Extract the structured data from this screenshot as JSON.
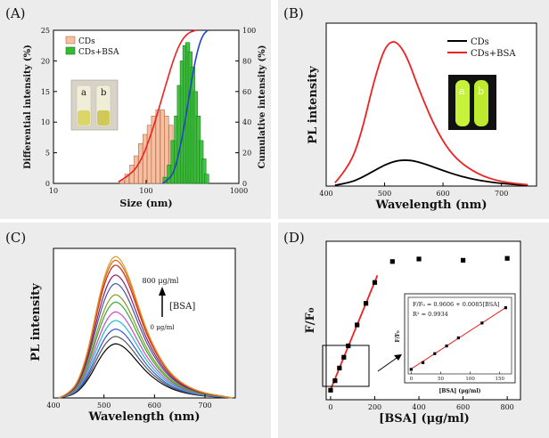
{
  "panels": [
    {
      "label": "(A)"
    },
    {
      "label": "(B)"
    },
    {
      "label": "(C)"
    },
    {
      "label": "(D)"
    }
  ],
  "chart_data": [
    {
      "panel": "(A)",
      "type": "bar",
      "xlabel": "Size (nm)",
      "ylabel": "Differential intensity (%)",
      "y2label": "Cumulative intensity (%)",
      "xscale": "log",
      "xlim": [
        10,
        1000
      ],
      "ylim": [
        0,
        25
      ],
      "y2lim": [
        0,
        100
      ],
      "xticks": [
        "10",
        "100",
        "1000"
      ],
      "yticks": [
        "0",
        "5",
        "10",
        "15",
        "20",
        "25"
      ],
      "y2ticks": [
        "0",
        "20",
        "40",
        "60",
        "80",
        "100"
      ],
      "legend_position": "top-left",
      "inset_letters": [
        "a",
        "b"
      ],
      "colors": {
        "cds": "#f5c0a0",
        "cds_edge": "#b86a4a",
        "cds_bsa": "#33bb33",
        "cds_bsa_edge": "#1f7a1f",
        "cum_cds": "#ee2222",
        "cum_cds_bsa": "#2244cc"
      },
      "series": [
        {
          "name": "CDs",
          "x": [
            55,
            62,
            70,
            78,
            87,
            97,
            108,
            120,
            134,
            150,
            166,
            185,
            205,
            228,
            255,
            285
          ],
          "values": [
            0.5,
            1.5,
            3,
            4.5,
            6.5,
            8,
            9.5,
            11,
            12,
            12,
            11,
            9.5,
            7,
            5,
            3,
            1.2
          ]
        },
        {
          "name": "CDs+BSA",
          "x": [
            160,
            178,
            195,
            212,
            228,
            245,
            262,
            280,
            298,
            318,
            340,
            365,
            392,
            420,
            450
          ],
          "values": [
            1,
            3,
            7,
            11,
            16,
            20,
            22.5,
            23,
            21.5,
            19,
            15,
            11,
            7,
            4,
            1.5
          ]
        },
        {
          "name": "CDs cumulative",
          "x": [
            50,
            70,
            90,
            110,
            130,
            150,
            170,
            200,
            230,
            260,
            300,
            350
          ],
          "values": [
            1,
            6,
            16,
            30,
            44,
            57,
            68,
            82,
            91,
            96,
            99,
            100
          ]
        },
        {
          "name": "CDs+BSA cumulative",
          "x": [
            150,
            180,
            200,
            220,
            245,
            270,
            300,
            330,
            370,
            410,
            460
          ],
          "values": [
            0,
            3,
            8,
            17,
            30,
            45,
            62,
            77,
            90,
            97,
            100
          ]
        }
      ]
    },
    {
      "panel": "(B)",
      "type": "line",
      "xlabel": "Wavelength (nm)",
      "ylabel": "PL intensity",
      "xlim": [
        400,
        760
      ],
      "ylim": [
        0,
        1.0
      ],
      "xticks": [
        "400",
        "500",
        "600",
        "700"
      ],
      "legend_position": "top-right",
      "inset_letters": [
        "a",
        "b"
      ],
      "colors": {
        "cds": "#000000",
        "cds_bsa": "#ee2222"
      },
      "series": [
        {
          "name": "CDs",
          "x": [
            415,
            440,
            460,
            480,
            500,
            520,
            535,
            550,
            570,
            600,
            630,
            660,
            700,
            745
          ],
          "values": [
            0.005,
            0.02,
            0.05,
            0.09,
            0.13,
            0.155,
            0.16,
            0.155,
            0.135,
            0.095,
            0.06,
            0.035,
            0.015,
            0.005
          ]
        },
        {
          "name": "CDs+BSA",
          "x": [
            415,
            440,
            460,
            480,
            495,
            505,
            515,
            525,
            540,
            560,
            590,
            620,
            660,
            700,
            745
          ],
          "values": [
            0.02,
            0.12,
            0.32,
            0.62,
            0.8,
            0.87,
            0.89,
            0.87,
            0.78,
            0.58,
            0.33,
            0.17,
            0.07,
            0.025,
            0.008
          ]
        }
      ]
    },
    {
      "panel": "(C)",
      "type": "line",
      "xlabel": "Wavelength (nm)",
      "ylabel": "PL intensity",
      "xlim": [
        400,
        760
      ],
      "ylim": [
        0,
        1.0
      ],
      "xticks": [
        "400",
        "500",
        "600",
        "700"
      ],
      "annotation_top": "800 μg/ml",
      "annotation_mid": "[BSA]",
      "annotation_bottom": "0 μg/ml",
      "shape": {
        "x": [
          410,
          430,
          450,
          470,
          490,
          505,
          520,
          535,
          550,
          570,
          590,
          620,
          650,
          690,
          740,
          755
        ],
        "values": [
          0.0,
          0.03,
          0.12,
          0.35,
          0.7,
          0.9,
          1.0,
          0.96,
          0.84,
          0.62,
          0.42,
          0.22,
          0.11,
          0.04,
          0.01,
          0.0
        ]
      },
      "curve_colors": [
        "#000000",
        "#555555",
        "#3355dd",
        "#22bbcc",
        "#cc44cc",
        "#33aa33",
        "#889922",
        "#4455aa",
        "#882266",
        "#cc2222",
        "#dd6600",
        "#dd9933"
      ],
      "peak_values": [
        0.44,
        0.5,
        0.56,
        0.63,
        0.7,
        0.78,
        0.84,
        0.93,
        1.0,
        1.08,
        1.12,
        1.15
      ]
    },
    {
      "panel": "(D)",
      "type": "scatter",
      "xlabel": "[BSA] (μg/ml)",
      "ylabel": "F/F₀",
      "xlim": [
        -20,
        860
      ],
      "ylim": [
        0.8,
        3.3
      ],
      "xticks": [
        "0",
        "200",
        "400",
        "600",
        "800"
      ],
      "series": [
        {
          "name": "data",
          "x": [
            0,
            20,
            40,
            60,
            80,
            120,
            160,
            200,
            280,
            400,
            600,
            800
          ],
          "values": [
            0.95,
            1.1,
            1.3,
            1.47,
            1.65,
            1.98,
            2.32,
            2.65,
            2.98,
            3.02,
            3.0,
            3.03
          ]
        }
      ],
      "fit": {
        "intercept": 0.9606,
        "slope": 0.0085,
        "x": [
          0,
          212
        ]
      },
      "inset": {
        "equation": "F/F₀ = 0.9606 + 0.0085[BSA]",
        "r2": "R² = 0.9934",
        "xlabel": "[BSA] (μg/ml)",
        "ylabel": "F/F₀",
        "xticks": [
          "0",
          "50",
          "100",
          "150"
        ],
        "xlim": [
          -5,
          170
        ],
        "ylim": [
          0.85,
          2.55
        ]
      }
    }
  ]
}
